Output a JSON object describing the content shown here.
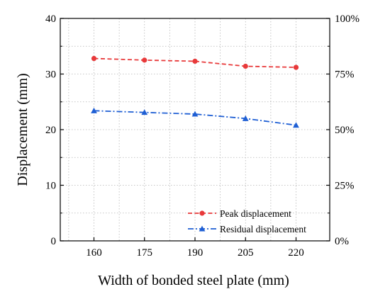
{
  "chart_data": {
    "type": "line",
    "xlabel": "Width of bonded steel plate (mm)",
    "ylabel": "Displacement (mm)",
    "categories": [
      "160",
      "175",
      "190",
      "205",
      "220"
    ],
    "x": [
      160,
      175,
      190,
      205,
      220
    ],
    "xlim": [
      150,
      230
    ],
    "ylim": [
      0,
      40
    ],
    "yticks": [
      0,
      10,
      20,
      30,
      40
    ],
    "y2lim": [
      0,
      100
    ],
    "y2ticks": [
      "0%",
      "25%",
      "50%",
      "75%",
      "100%"
    ],
    "grid": true,
    "legend_position": "bottom-right",
    "series": [
      {
        "name": "Peak displacement",
        "values": [
          32.8,
          32.5,
          32.3,
          31.4,
          31.2
        ],
        "color": "#e8393a",
        "marker": "circle",
        "dash": "dashed"
      },
      {
        "name": "Residual displacement",
        "values": [
          23.4,
          23.1,
          22.8,
          22.0,
          20.8
        ],
        "color": "#1f5fd4",
        "marker": "triangle",
        "dash": "dashdot"
      }
    ]
  }
}
